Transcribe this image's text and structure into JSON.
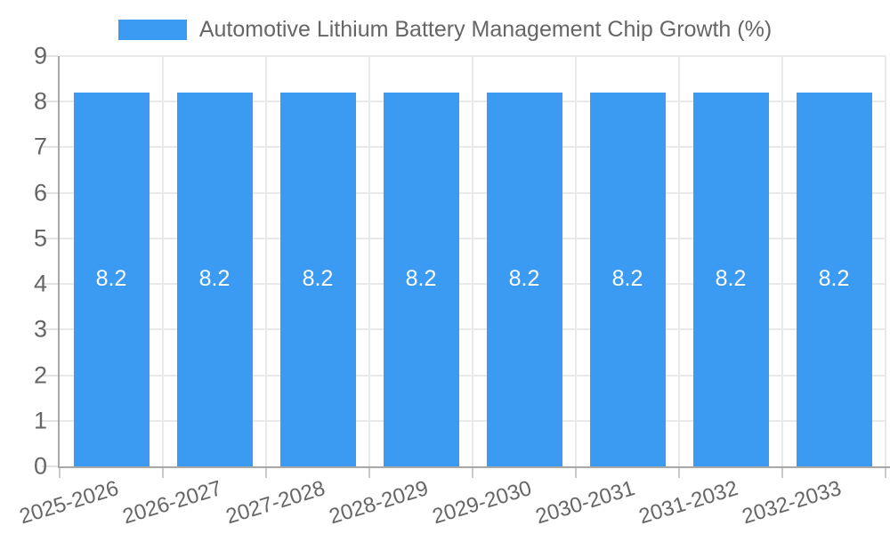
{
  "chart_data": {
    "type": "bar",
    "title": "Automotive Lithium Battery Management Chip Growth (%)",
    "categories": [
      "2025-2026",
      "2026-2027",
      "2027-2028",
      "2028-2029",
      "2029-2030",
      "2030-2031",
      "2031-2032",
      "2032-2033"
    ],
    "series": [
      {
        "name": "Automotive Lithium Battery Management Chip Growth (%)",
        "color": "#3b9af1",
        "values": [
          8.2,
          8.2,
          8.2,
          8.2,
          8.2,
          8.2,
          8.2,
          8.2
        ],
        "value_labels": [
          "8.2",
          "8.2",
          "8.2",
          "8.2",
          "8.2",
          "8.2",
          "8.2",
          "8.2"
        ]
      }
    ],
    "ylim": [
      0,
      9
    ],
    "yticks": [
      0,
      1,
      2,
      3,
      4,
      5,
      6,
      7,
      8,
      9
    ],
    "xlabel": "",
    "ylabel": "",
    "grid": true,
    "legend_position": "top",
    "bar_value_labels_shown": true,
    "colors": {
      "bar": "#3b9af1",
      "bar_value_label": "#ffffff",
      "text": "#666666",
      "grid": "#e9e9e9",
      "y_tick": "#e2e2e2",
      "x_tick": "#c9c9c9",
      "axis": "#a8a8a8",
      "background": "#ffffff"
    }
  }
}
